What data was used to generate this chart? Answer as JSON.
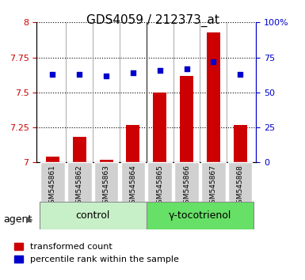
{
  "title": "GDS4059 / 212373_at",
  "samples": [
    "GSM545861",
    "GSM545862",
    "GSM545863",
    "GSM545864",
    "GSM545865",
    "GSM545866",
    "GSM545867",
    "GSM545868"
  ],
  "transformed_count": [
    7.04,
    7.18,
    7.02,
    7.27,
    7.5,
    7.62,
    7.93,
    7.27
  ],
  "percentile_rank": [
    63,
    63,
    62,
    64,
    66,
    67,
    72,
    63
  ],
  "ylim_left": [
    7.0,
    8.0
  ],
  "ylim_right": [
    0,
    100
  ],
  "yticks_left": [
    7.0,
    7.25,
    7.5,
    7.75,
    8.0
  ],
  "yticks_right": [
    0,
    25,
    50,
    75,
    100
  ],
  "ytick_labels_left": [
    "7",
    "7.25",
    "7.5",
    "7.75",
    "8"
  ],
  "ytick_labels_right": [
    "0",
    "25",
    "50",
    "75",
    "100%"
  ],
  "groups": {
    "control": [
      0,
      1,
      2,
      3
    ],
    "gamma-tocotrienol": [
      4,
      5,
      6,
      7
    ]
  },
  "group_labels": [
    "control",
    "γ-tocotrienol"
  ],
  "group_colors": [
    "#c8f0c8",
    "#66e066"
  ],
  "bar_color": "#cc0000",
  "dot_color": "#0000cc",
  "bar_width": 0.5,
  "agent_label": "agent",
  "legend_items": [
    "transformed count",
    "percentile rank within the sample"
  ],
  "legend_colors": [
    "#cc0000",
    "#0000cc"
  ],
  "background_plot": "#ffffff",
  "background_xticklabel": "#d0d0d0",
  "left_axis_color": "#cc0000",
  "right_axis_color": "#0000cc",
  "dotted_line_color": "#000000",
  "font_size_title": 11,
  "font_size_ticks": 8,
  "font_size_legend": 8,
  "font_size_group": 9,
  "font_size_agent": 9
}
